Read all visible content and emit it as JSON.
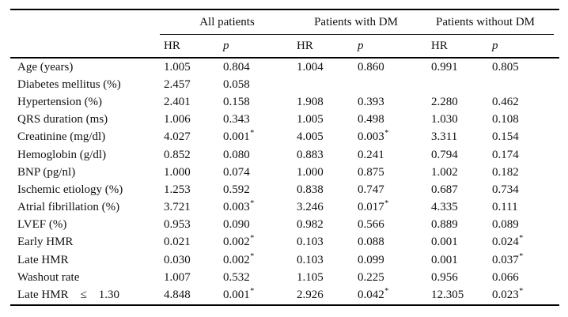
{
  "table": {
    "column_groups": [
      {
        "label": "All patients"
      },
      {
        "label": "Patients with DM"
      },
      {
        "label": "Patients without DM"
      }
    ],
    "subheaders": {
      "hr": "HR",
      "p": "p"
    },
    "significance_marker": "*",
    "rows": [
      {
        "label": "Age (years)",
        "values": [
          "1.005",
          "0.804",
          "1.004",
          "0.860",
          "0.991",
          "0.805"
        ]
      },
      {
        "label": "Diabetes mellitus (%)",
        "values": [
          "2.457",
          "0.058",
          "",
          "",
          "",
          ""
        ]
      },
      {
        "label": "Hypertension (%)",
        "values": [
          "2.401",
          "0.158",
          "1.908",
          "0.393",
          "2.280",
          "0.462"
        ]
      },
      {
        "label": "QRS duration (ms)",
        "values": [
          "1.006",
          "0.343",
          "1.005",
          "0.498",
          "1.030",
          "0.108"
        ]
      },
      {
        "label": "Creatinine (mg/dl)",
        "values": [
          "4.027",
          "0.001*",
          "4.005",
          "0.003*",
          "3.311",
          "0.154"
        ]
      },
      {
        "label": "Hemoglobin (g/dl)",
        "values": [
          "0.852",
          "0.080",
          "0.883",
          "0.241",
          "0.794",
          "0.174"
        ]
      },
      {
        "label": "BNP (pg/nl)",
        "values": [
          "1.000",
          "0.074",
          "1.000",
          "0.875",
          "1.002",
          "0.182"
        ]
      },
      {
        "label": "Ischemic etiology (%)",
        "values": [
          "1.253",
          "0.592",
          "0.838",
          "0.747",
          "0.687",
          "0.734"
        ]
      },
      {
        "label": "Atrial fibrillation (%)",
        "values": [
          "3.721",
          "0.003*",
          "3.246",
          "0.017*",
          "4.335",
          "0.111"
        ]
      },
      {
        "label": "LVEF (%)",
        "values": [
          "0.953",
          "0.090",
          "0.982",
          "0.566",
          "0.889",
          "0.089"
        ]
      },
      {
        "label": "Early HMR",
        "values": [
          "0.021",
          "0.002*",
          "0.103",
          "0.088",
          "0.001",
          "0.024*"
        ]
      },
      {
        "label": "Late HMR",
        "values": [
          "0.030",
          "0.002*",
          "0.103",
          "0.099",
          "0.001",
          "0.037*"
        ]
      },
      {
        "label": "Washout rate",
        "values": [
          "1.007",
          "0.532",
          "1.105",
          "0.225",
          "0.956",
          "0.066"
        ]
      },
      {
        "label": "Late HMR    ≤    1.30",
        "values": [
          "4.848",
          "0.001*",
          "2.926",
          "0.042*",
          "12.305",
          "0.023*"
        ]
      }
    ],
    "colors": {
      "text": "#111111",
      "background": "#ffffff",
      "rule": "#000000"
    }
  }
}
